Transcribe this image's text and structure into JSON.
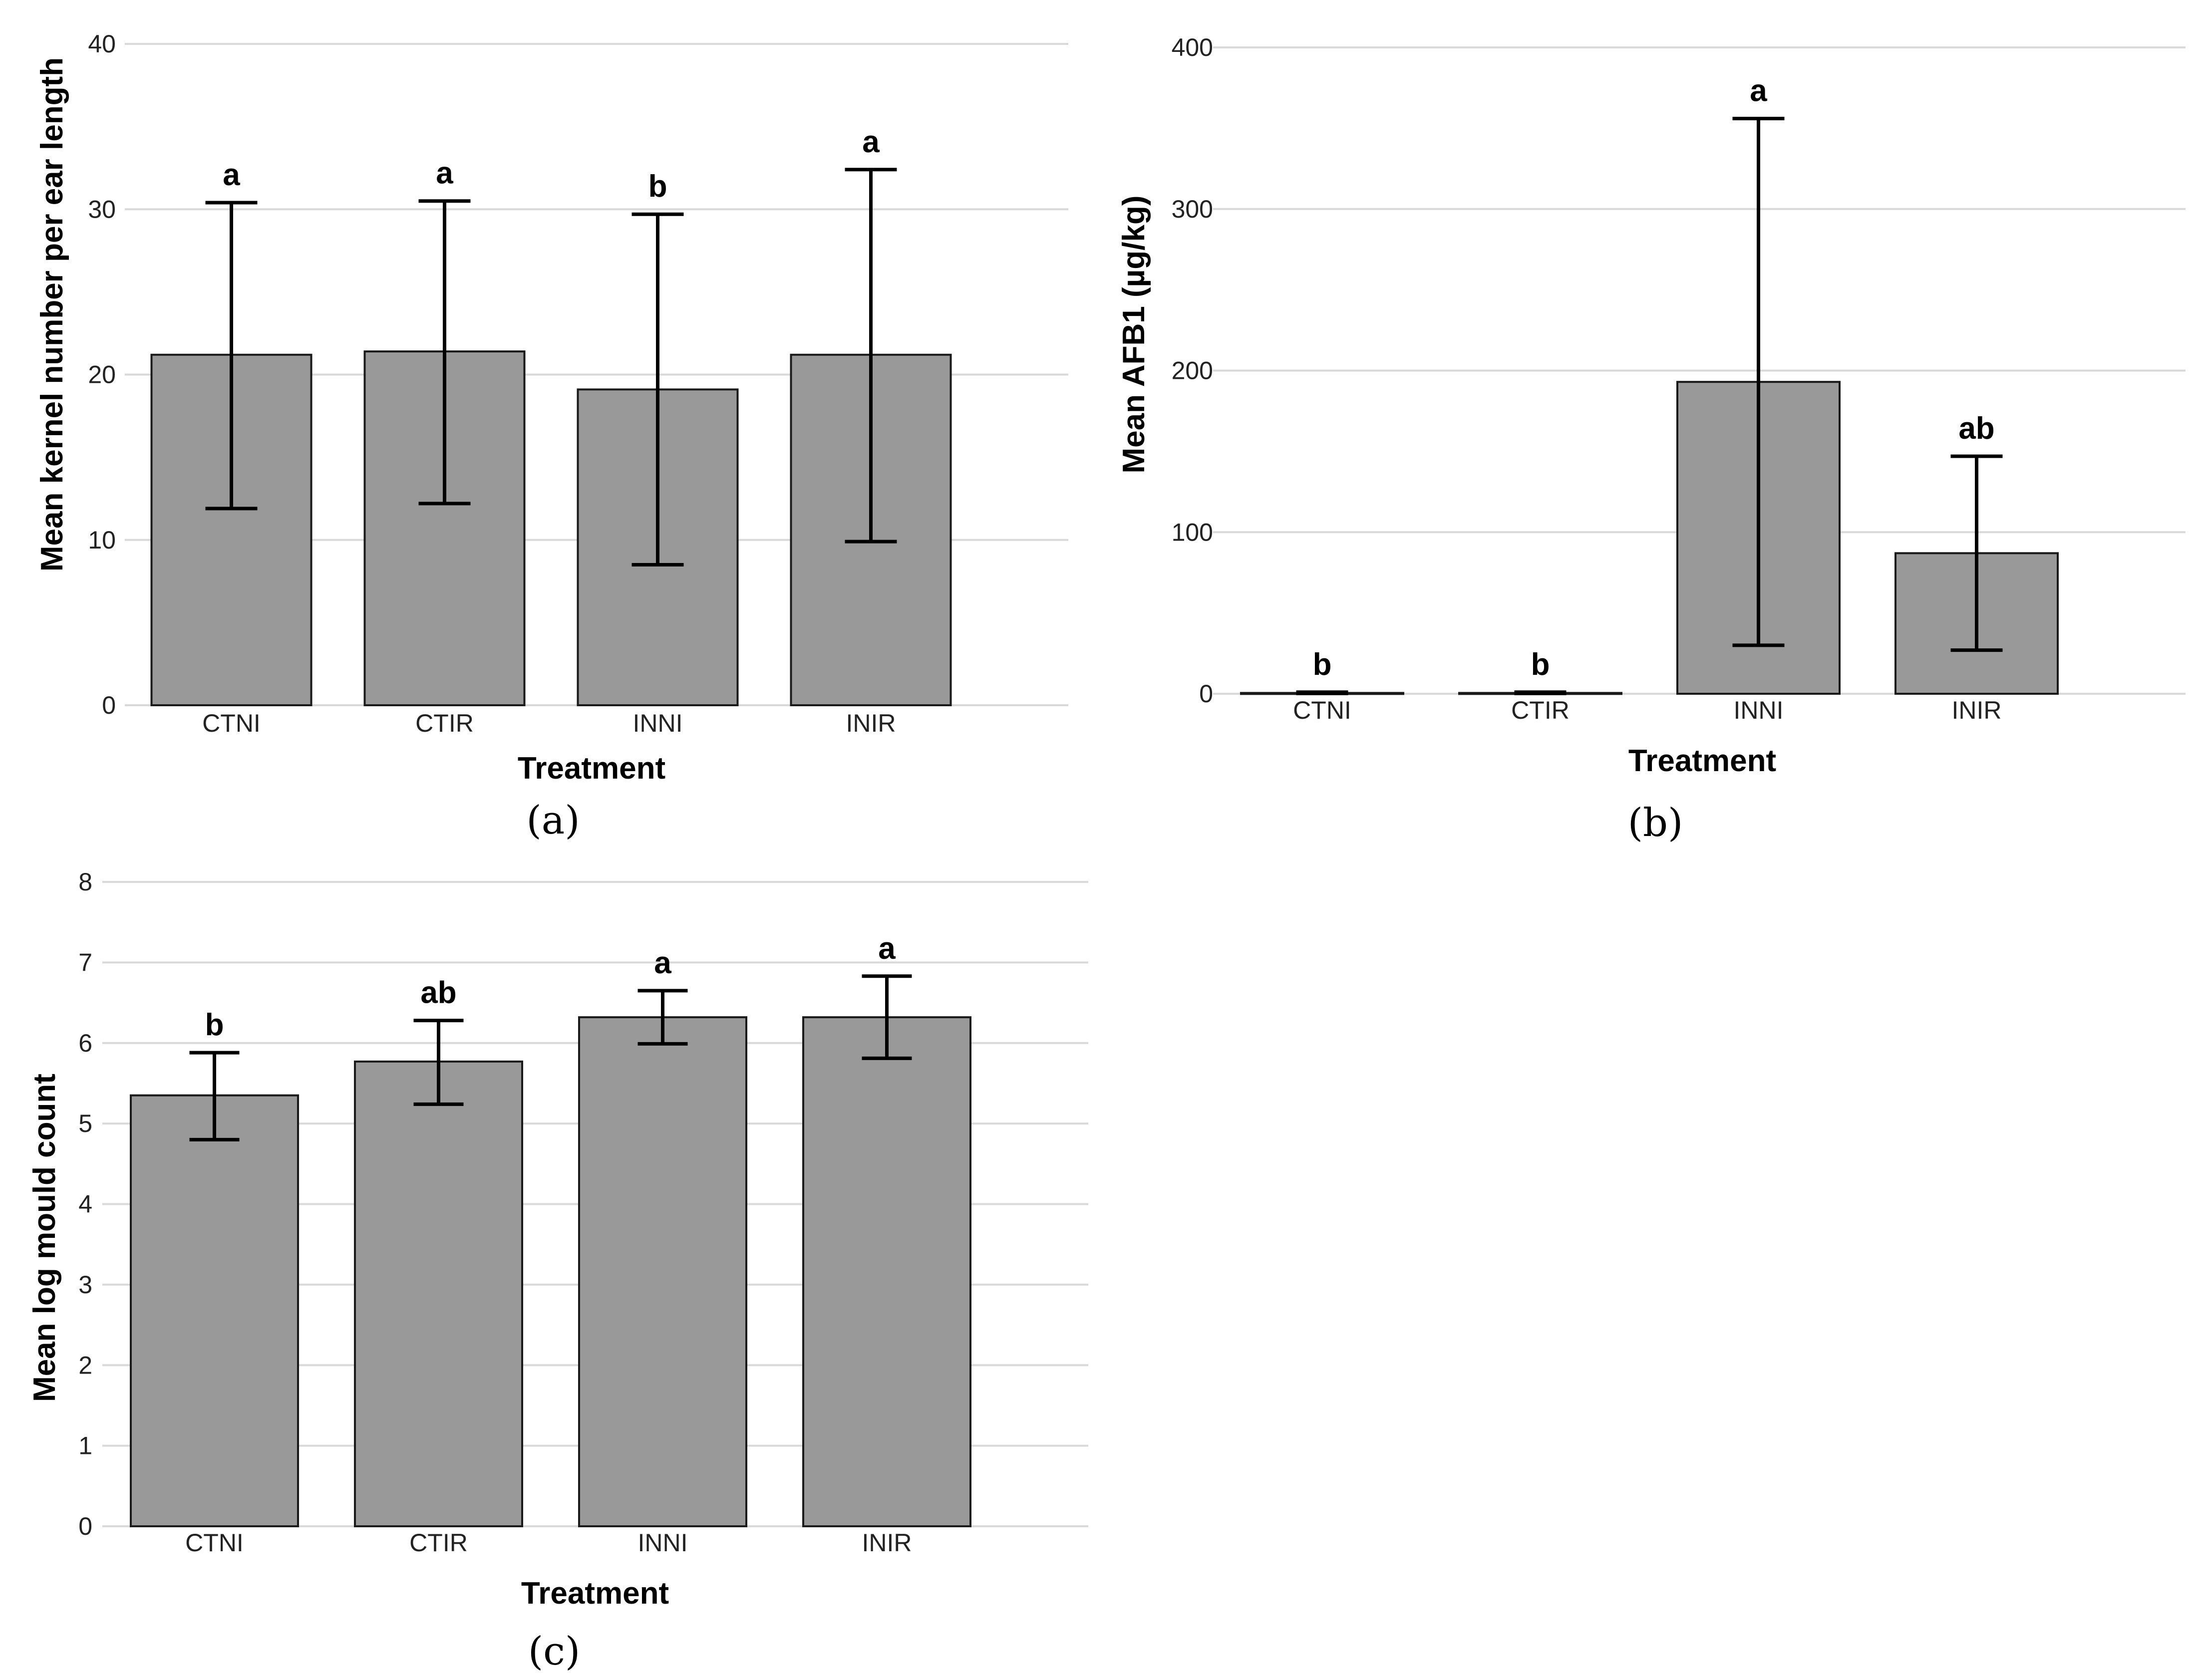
{
  "chart_data": [
    {
      "type": "bar",
      "panel": "(a)",
      "xlabel": "Treatment",
      "ylabel": "Mean kernel number per ear length",
      "ylim": [
        0,
        40
      ],
      "yticks": [
        0,
        10,
        20,
        30,
        40
      ],
      "grid": true,
      "categories": [
        "CTNI",
        "CTIR",
        "INNI",
        "INIR"
      ],
      "values": [
        21.2,
        21.4,
        19.1,
        21.2
      ],
      "error_low": [
        11.9,
        12.2,
        8.5,
        9.9
      ],
      "error_high": [
        30.4,
        30.5,
        29.7,
        32.4
      ],
      "significance": [
        "a",
        "a",
        "b",
        "a"
      ]
    },
    {
      "type": "bar",
      "panel": "(b)",
      "xlabel": "Treatment",
      "ylabel": "Mean AFB1 (µg/kg)",
      "ylim": [
        0,
        400
      ],
      "yticks": [
        0,
        100,
        200,
        300,
        400
      ],
      "grid": true,
      "categories": [
        "CTNI",
        "CTIR",
        "INNI",
        "INIR"
      ],
      "values": [
        0.5,
        0.5,
        193,
        87
      ],
      "error_low": [
        0.2,
        0.2,
        30,
        27
      ],
      "error_high": [
        1.0,
        1.0,
        356,
        147
      ],
      "significance": [
        "b",
        "b",
        "a",
        "ab"
      ]
    },
    {
      "type": "bar",
      "panel": "(c)",
      "xlabel": "Treatment",
      "ylabel": "Mean log mould count",
      "ylim": [
        0,
        8
      ],
      "yticks": [
        0,
        1,
        2,
        3,
        4,
        5,
        6,
        7,
        8
      ],
      "grid": true,
      "categories": [
        "CTNI",
        "CTIR",
        "INNI",
        "INIR"
      ],
      "values": [
        5.35,
        5.77,
        6.32,
        6.32
      ],
      "error_low": [
        4.8,
        5.24,
        5.99,
        5.81
      ],
      "error_high": [
        5.88,
        6.28,
        6.65,
        6.83
      ],
      "significance": [
        "b",
        "ab",
        "a",
        "a"
      ]
    }
  ]
}
